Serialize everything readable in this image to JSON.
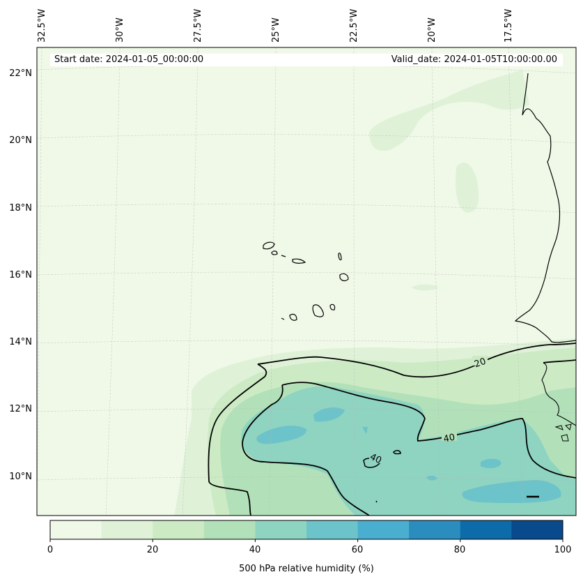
{
  "header": {
    "start_date": "Start date: 2024-01-05_00:00:00",
    "valid_date": "Valid_date: 2024-01-05T10:00:00.00"
  },
  "longitude_labels": [
    "32.5°W",
    "30°W",
    "27.5°W",
    "25°W",
    "22.5°W",
    "20°W",
    "17.5°W"
  ],
  "latitude_labels": [
    "22°N",
    "20°N",
    "18°N",
    "16°N",
    "14°N",
    "12°N",
    "10°N"
  ],
  "contour_labels": [
    "20",
    "40",
    "40"
  ],
  "colorbar": {
    "title": "500 hPa relative humidity (%)",
    "ticks": [
      "0",
      "20",
      "40",
      "60",
      "80",
      "100"
    ],
    "colors": [
      "#f0f9e8",
      "#dff2d8",
      "#ccebc5",
      "#b2e1b9",
      "#8fd3c1",
      "#6cc3c9",
      "#4aaed0",
      "#2b8cbe",
      "#0e6ba9",
      "#084a8c"
    ]
  }
}
